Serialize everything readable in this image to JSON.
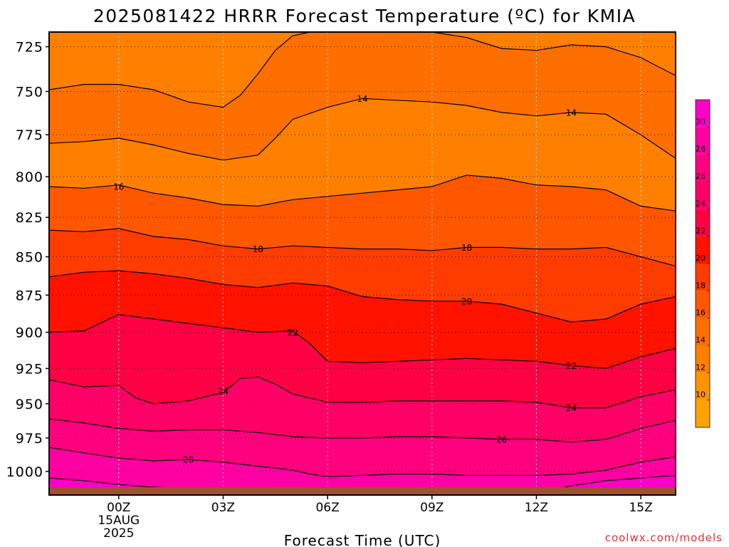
{
  "chart_data": {
    "type": "filled-contour",
    "title": "2025081422 HRRR Forecast Temperature (ºC) for KMIA",
    "xlabel": "Forecast Time (UTC)",
    "credit": "coolwx.com/models",
    "x_unit": "hours relative to 00Z 15AUG2025",
    "xlim": [
      -2,
      16
    ],
    "x_ticks": [
      {
        "value": 0,
        "lines": [
          "00Z",
          "15AUG",
          "2025"
        ]
      },
      {
        "value": 3,
        "lines": [
          "03Z"
        ]
      },
      {
        "value": 6,
        "lines": [
          "06Z"
        ]
      },
      {
        "value": 9,
        "lines": [
          "09Z"
        ]
      },
      {
        "value": 12,
        "lines": [
          "12Z"
        ]
      },
      {
        "value": 15,
        "lines": [
          "15Z"
        ]
      }
    ],
    "y_unit": "hPa",
    "ylim": [
      1018,
      717
    ],
    "y_ticks": [
      725,
      750,
      775,
      800,
      825,
      850,
      875,
      900,
      925,
      950,
      975,
      1000
    ],
    "surface_pressure_hPa": 1012,
    "colorbar": {
      "levels": [
        8,
        10,
        12,
        14,
        16,
        18,
        20,
        22,
        24,
        26,
        28,
        30,
        32
      ],
      "tick_labels": [
        10,
        12,
        14,
        16,
        18,
        20,
        22,
        24,
        26,
        28,
        30
      ],
      "colors": [
        "#ffa300",
        "#ff9400",
        "#ff8000",
        "#ff6f00",
        "#ff5700",
        "#ff3c00",
        "#ff1200",
        "#ff0044",
        "#ff0066",
        "#ff007f",
        "#ff00a2",
        "#ff00c6",
        "#ff00ff"
      ]
    },
    "grid": true,
    "background_fill_C": 13,
    "contours": [
      {
        "level": 14,
        "fill_C": 15,
        "points": [
          [
            -2,
            749
          ],
          [
            -1,
            746
          ],
          [
            0,
            746
          ],
          [
            1,
            749
          ],
          [
            2,
            756
          ],
          [
            3,
            759
          ],
          [
            3.5,
            752
          ],
          [
            4,
            740
          ],
          [
            4.5,
            727
          ],
          [
            5,
            719
          ],
          [
            5.5,
            717
          ],
          [
            6,
            717
          ],
          [
            7,
            717
          ],
          [
            8,
            717
          ],
          [
            9,
            717
          ],
          [
            10,
            720
          ],
          [
            10.5,
            723
          ],
          [
            11,
            726
          ],
          [
            12,
            727
          ],
          [
            13,
            724
          ],
          [
            14,
            725
          ],
          [
            15,
            731
          ],
          [
            16,
            741
          ]
        ]
      },
      {
        "level": 14,
        "fill_C": 13,
        "points": [
          [
            -2,
            780
          ],
          [
            -1,
            779
          ],
          [
            0,
            777
          ],
          [
            1,
            781
          ],
          [
            2,
            786
          ],
          [
            3,
            790
          ],
          [
            4,
            787
          ],
          [
            4.5,
            777
          ],
          [
            5,
            766
          ],
          [
            6,
            759
          ],
          [
            7,
            754
          ],
          [
            8,
            755
          ],
          [
            9,
            756
          ],
          [
            10,
            758
          ],
          [
            11,
            762
          ],
          [
            12,
            764
          ],
          [
            13,
            762
          ],
          [
            14,
            763
          ],
          [
            15,
            775
          ],
          [
            16,
            789
          ]
        ]
      },
      {
        "level": 16,
        "fill_C": 17,
        "points": [
          [
            -2,
            806
          ],
          [
            -1,
            807
          ],
          [
            0,
            805
          ],
          [
            1,
            810
          ],
          [
            2,
            813
          ],
          [
            3,
            817
          ],
          [
            4,
            818
          ],
          [
            5,
            814
          ],
          [
            6,
            812
          ],
          [
            7,
            810
          ],
          [
            8,
            808
          ],
          [
            9,
            806
          ],
          [
            10,
            799
          ],
          [
            11,
            801
          ],
          [
            12,
            805
          ],
          [
            13,
            806
          ],
          [
            14,
            808
          ],
          [
            15,
            818
          ],
          [
            16,
            821
          ]
        ]
      },
      {
        "level": 18,
        "fill_C": 19,
        "points": [
          [
            -2,
            833
          ],
          [
            -1,
            834
          ],
          [
            0,
            832
          ],
          [
            1,
            837
          ],
          [
            2,
            839
          ],
          [
            3,
            843
          ],
          [
            4,
            845
          ],
          [
            5,
            843
          ],
          [
            6,
            844
          ],
          [
            7,
            845
          ],
          [
            8,
            845
          ],
          [
            9,
            846
          ],
          [
            10,
            844
          ],
          [
            11,
            844
          ],
          [
            12,
            845
          ],
          [
            13,
            845
          ],
          [
            14,
            844
          ],
          [
            15,
            850
          ],
          [
            16,
            856
          ]
        ]
      },
      {
        "level": 20,
        "fill_C": 21,
        "points": [
          [
            -2,
            863
          ],
          [
            -1,
            860
          ],
          [
            0,
            859
          ],
          [
            1,
            861
          ],
          [
            2,
            864
          ],
          [
            3,
            868
          ],
          [
            4,
            870
          ],
          [
            5,
            867
          ],
          [
            6,
            869
          ],
          [
            7,
            876
          ],
          [
            8,
            878
          ],
          [
            9,
            879
          ],
          [
            10,
            879
          ],
          [
            11,
            881
          ],
          [
            12,
            887
          ],
          [
            13,
            893
          ],
          [
            14,
            891
          ],
          [
            15,
            881
          ],
          [
            16,
            876
          ]
        ]
      },
      {
        "level": 22,
        "fill_C": 23,
        "points": [
          [
            -2,
            900
          ],
          [
            -1,
            899
          ],
          [
            0,
            888
          ],
          [
            1,
            891
          ],
          [
            2,
            894
          ],
          [
            3,
            897
          ],
          [
            4,
            900
          ],
          [
            5,
            899
          ],
          [
            5.5,
            908
          ],
          [
            6,
            920
          ],
          [
            7,
            921
          ],
          [
            8,
            920
          ],
          [
            9,
            919
          ],
          [
            10,
            918
          ],
          [
            11,
            919
          ],
          [
            12,
            920
          ],
          [
            13,
            923
          ],
          [
            14,
            925
          ],
          [
            15,
            917
          ],
          [
            16,
            911
          ]
        ]
      },
      {
        "level": 24,
        "fill_C": 25,
        "points": [
          [
            -2,
            933
          ],
          [
            -1,
            938
          ],
          [
            0,
            937
          ],
          [
            0.5,
            946
          ],
          [
            1,
            950
          ],
          [
            2,
            948
          ],
          [
            3,
            942
          ],
          [
            3.5,
            932
          ],
          [
            4,
            931
          ],
          [
            4.5,
            936
          ],
          [
            5,
            943
          ],
          [
            6,
            949
          ],
          [
            7,
            949
          ],
          [
            8,
            948
          ],
          [
            9,
            948
          ],
          [
            10,
            948
          ],
          [
            11,
            948
          ],
          [
            12,
            949
          ],
          [
            13,
            953
          ],
          [
            14,
            953
          ],
          [
            15,
            945
          ],
          [
            16,
            940
          ]
        ]
      },
      {
        "level": 26,
        "fill_C": 27,
        "points": [
          [
            -2,
            961
          ],
          [
            -1,
            964
          ],
          [
            0,
            968
          ],
          [
            1,
            970
          ],
          [
            2,
            969
          ],
          [
            3,
            969
          ],
          [
            4,
            971
          ],
          [
            5,
            974
          ],
          [
            6,
            975
          ],
          [
            7,
            975
          ],
          [
            8,
            974
          ],
          [
            9,
            974
          ],
          [
            10,
            975
          ],
          [
            11,
            976
          ],
          [
            12,
            976
          ],
          [
            13,
            978
          ],
          [
            14,
            976
          ],
          [
            15,
            968
          ],
          [
            16,
            962
          ]
        ]
      },
      {
        "level": 28,
        "fill_C": 29,
        "points": [
          [
            -2,
            982
          ],
          [
            -1,
            986
          ],
          [
            0,
            990
          ],
          [
            1,
            992
          ],
          [
            2,
            991
          ],
          [
            3,
            993
          ],
          [
            4,
            996
          ],
          [
            5,
            999
          ],
          [
            5.5,
            1002
          ],
          [
            6,
            1004
          ],
          [
            7,
            1003
          ],
          [
            8,
            1002
          ],
          [
            9,
            1002
          ],
          [
            10,
            1003
          ],
          [
            11,
            1003
          ],
          [
            12,
            1003
          ],
          [
            13,
            1002
          ],
          [
            14,
            999
          ],
          [
            15,
            993
          ],
          [
            16,
            989
          ]
        ]
      },
      {
        "level": 30,
        "fill_C": 31,
        "points": [
          [
            -2,
            1005
          ],
          [
            -1,
            1007
          ],
          [
            0,
            1010
          ],
          [
            1,
            1012
          ],
          [
            2,
            1013
          ],
          [
            3,
            1014
          ],
          [
            4,
            1014
          ],
          [
            5,
            1014
          ],
          [
            6,
            1014
          ],
          [
            7,
            1014
          ],
          [
            8,
            1014
          ],
          [
            9,
            1014
          ],
          [
            10,
            1014
          ],
          [
            11,
            1014
          ],
          [
            12,
            1014
          ],
          [
            12.5,
            1014
          ],
          [
            13,
            1011
          ],
          [
            14,
            1007
          ],
          [
            15,
            1005
          ],
          [
            16,
            1003
          ]
        ]
      }
    ],
    "labels": [
      {
        "text": "14",
        "x": 7,
        "y": 754
      },
      {
        "text": "14",
        "x": 13,
        "y": 762
      },
      {
        "text": "16",
        "x": 0,
        "y": 806
      },
      {
        "text": "18",
        "x": 4,
        "y": 845
      },
      {
        "text": "18",
        "x": 10,
        "y": 844
      },
      {
        "text": "20",
        "x": 10,
        "y": 879
      },
      {
        "text": "22",
        "x": 5,
        "y": 900
      },
      {
        "text": "22",
        "x": 13,
        "y": 923
      },
      {
        "text": "24",
        "x": 3,
        "y": 941
      },
      {
        "text": "24",
        "x": 13,
        "y": 953
      },
      {
        "text": "26",
        "x": 11,
        "y": 976
      },
      {
        "text": "28",
        "x": 2,
        "y": 991
      }
    ]
  }
}
